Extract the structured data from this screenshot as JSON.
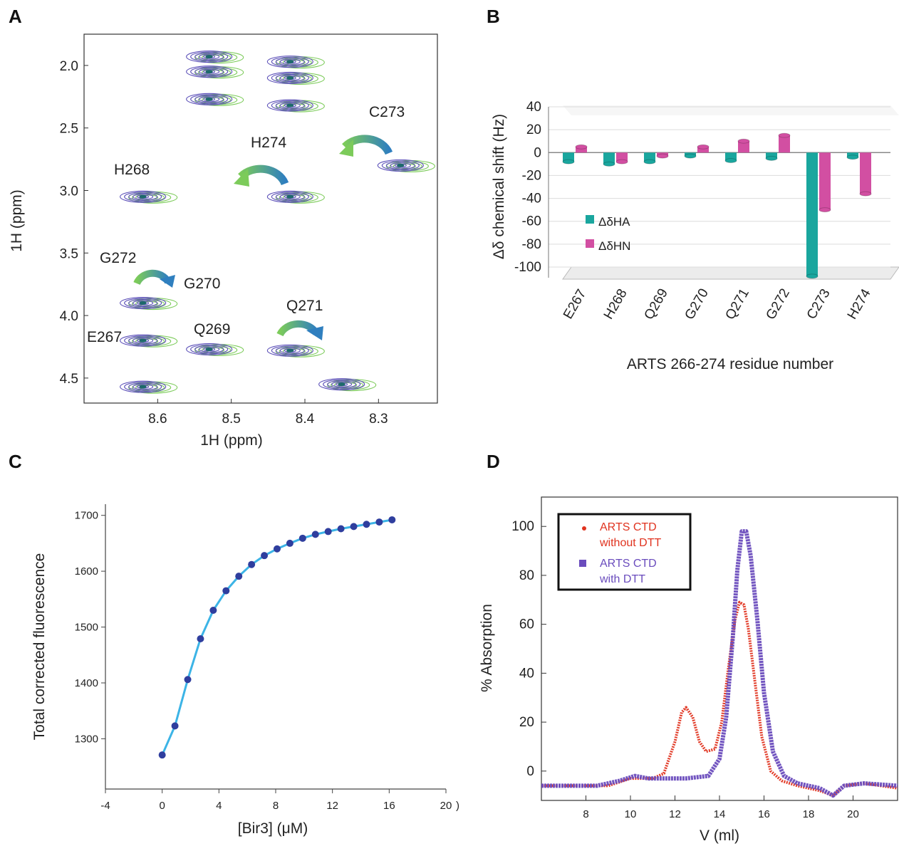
{
  "panels": {
    "a": "A",
    "b": "B",
    "c": "C",
    "d": "D"
  },
  "chart_data": [
    {
      "type": "scatter",
      "panel": "A",
      "xlabel": "1H (ppm)",
      "ylabel": "1H (ppm)",
      "xlim": [
        8.7,
        8.22
      ],
      "ylim": [
        4.7,
        1.75
      ],
      "x_reversed": true,
      "y_reversed": true,
      "x_ticks": [
        "8.6",
        "8.5",
        "8.4",
        "8.3"
      ],
      "y_ticks": [
        "2.0",
        "2.5",
        "3.0",
        "3.5",
        "4.0",
        "4.5"
      ],
      "series_colors": [
        "#5b4fb8",
        "#7ccb5a"
      ],
      "peaks": [
        {
          "x": 8.53,
          "y": 1.93
        },
        {
          "x": 8.53,
          "y": 2.05
        },
        {
          "x": 8.53,
          "y": 2.27
        },
        {
          "x": 8.42,
          "y": 1.97
        },
        {
          "x": 8.42,
          "y": 2.1
        },
        {
          "x": 8.42,
          "y": 2.32
        },
        {
          "x": 8.27,
          "y": 2.8
        },
        {
          "x": 8.42,
          "y": 3.05
        },
        {
          "x": 8.62,
          "y": 3.05
        },
        {
          "x": 8.62,
          "y": 3.9
        },
        {
          "x": 8.53,
          "y": 4.27
        },
        {
          "x": 8.42,
          "y": 4.28
        },
        {
          "x": 8.62,
          "y": 4.2
        },
        {
          "x": 8.62,
          "y": 4.57
        },
        {
          "x": 8.35,
          "y": 4.55
        }
      ],
      "annotations": [
        "H268",
        "H274",
        "C273",
        "G272",
        "G270",
        "Q271",
        "E267",
        "Q269"
      ]
    },
    {
      "type": "bar",
      "panel": "B",
      "title": "",
      "xlabel": "ARTS 266-274 residue number",
      "ylabel": "Δδ chemical shift (Hz)",
      "ylim": [
        -100,
        40
      ],
      "y_ticks": [
        "40",
        "20",
        "0",
        "-20",
        "-40",
        "-60",
        "-80",
        "-100"
      ],
      "categories": [
        "E267",
        "H268",
        "Q269",
        "G270",
        "Q271",
        "G272",
        "C273",
        "H274"
      ],
      "series": [
        {
          "name": "ΔδHA",
          "color": "#1aa69e",
          "values": [
            -8,
            -10,
            -8,
            -3,
            -7,
            -5,
            -108,
            -4
          ]
        },
        {
          "name": "ΔδHN",
          "color": "#d24fa2",
          "values": [
            5,
            -8,
            -3,
            5,
            10,
            15,
            -50,
            -36
          ]
        }
      ]
    },
    {
      "type": "line",
      "panel": "C",
      "xlabel": "[Bir3] (μM)",
      "ylabel": "Total corrected fluorescence",
      "xlim": [
        -4,
        20
      ],
      "ylim": [
        1210,
        1720
      ],
      "x_ticks": [
        "-4",
        "0",
        "4",
        "8",
        "12",
        "16",
        "20"
      ],
      "y_ticks": [
        "1300",
        "1400",
        "1500",
        "1600",
        "1700"
      ],
      "line_color": "#3cb4e6",
      "point_color": "#2f3e9e",
      "x": [
        0,
        0.9,
        1.8,
        2.7,
        3.6,
        4.5,
        5.4,
        6.3,
        7.2,
        8.1,
        9.0,
        9.9,
        10.8,
        11.7,
        12.6,
        13.5,
        14.4,
        15.3,
        16.2
      ],
      "y": [
        1271,
        1323,
        1406,
        1479,
        1530,
        1565,
        1591,
        1612,
        1628,
        1640,
        1650,
        1659,
        1666,
        1671,
        1676,
        1680,
        1684,
        1688,
        1692
      ]
    },
    {
      "type": "line",
      "panel": "D",
      "xlabel": "V (ml)",
      "ylabel": "% Absorption",
      "xlim": [
        6,
        22
      ],
      "ylim": [
        -12,
        112
      ],
      "x_ticks": [
        "8",
        "10",
        "12",
        "14",
        "16",
        "18",
        "20"
      ],
      "y_ticks": [
        "0",
        "20",
        "40",
        "60",
        "80",
        "100"
      ],
      "series": [
        {
          "name": "ARTS CTD without DTT",
          "color": "#e0331f",
          "x": [
            6,
            9,
            10,
            11,
            11.5,
            12,
            12.3,
            12.5,
            12.8,
            13.1,
            13.4,
            13.8,
            14.1,
            14.4,
            14.7,
            14.9,
            15.1,
            15.3,
            15.6,
            15.9,
            16.3,
            16.8,
            17.5,
            18.5,
            19.1,
            19.6,
            20.5,
            22
          ],
          "y": [
            -6,
            -6,
            -3,
            -3,
            -1,
            12,
            24,
            26,
            22,
            12,
            8,
            9,
            20,
            42,
            62,
            69,
            68,
            58,
            36,
            14,
            0,
            -4,
            -6,
            -8,
            -10,
            -6,
            -5,
            -7
          ]
        },
        {
          "name": "ARTS CTD with DTT",
          "color": "#6a4cbd",
          "x": [
            6,
            8.5,
            9.5,
            10.2,
            10.8,
            11.5,
            12.5,
            13.5,
            14.0,
            14.3,
            14.6,
            14.8,
            15.0,
            15.2,
            15.4,
            15.7,
            16.0,
            16.4,
            16.9,
            17.5,
            18.5,
            19.1,
            19.6,
            20.5,
            22
          ],
          "y": [
            -6,
            -6,
            -4,
            -2,
            -3,
            -3,
            -3,
            -2,
            5,
            22,
            55,
            82,
            98,
            98,
            88,
            62,
            32,
            8,
            -2,
            -5,
            -7,
            -10,
            -6,
            -5,
            -6
          ]
        }
      ],
      "legend": {
        "position": "top-left",
        "boxed": true
      }
    }
  ],
  "panel_a": {
    "ylabel": "1H  (ppm)",
    "xlabel": "1H  (ppm)",
    "annotations": {
      "h268": "H268",
      "h274": "H274",
      "c273": "C273",
      "g272": "G272",
      "g270": "G270",
      "q271": "Q271",
      "e267": "E267",
      "q269": "Q269"
    }
  },
  "panel_b": {
    "ylabel": "Δδ chemical shift (Hz)",
    "xlabel": "ARTS 266-274 residue number",
    "legend": {
      "ha": "ΔδHA",
      "hn": "ΔδHN"
    }
  },
  "panel_c": {
    "ylabel": "Total corrected fluorescence",
    "xlabel": "[Bir3] (μM)"
  },
  "panel_d": {
    "ylabel": "% Absorption",
    "xlabel": "V (ml)",
    "legend": {
      "red_line1": "ARTS CTD",
      "red_line2": "without DTT",
      "purple_line1": "ARTS CTD",
      "purple_line2": "with DTT"
    }
  }
}
